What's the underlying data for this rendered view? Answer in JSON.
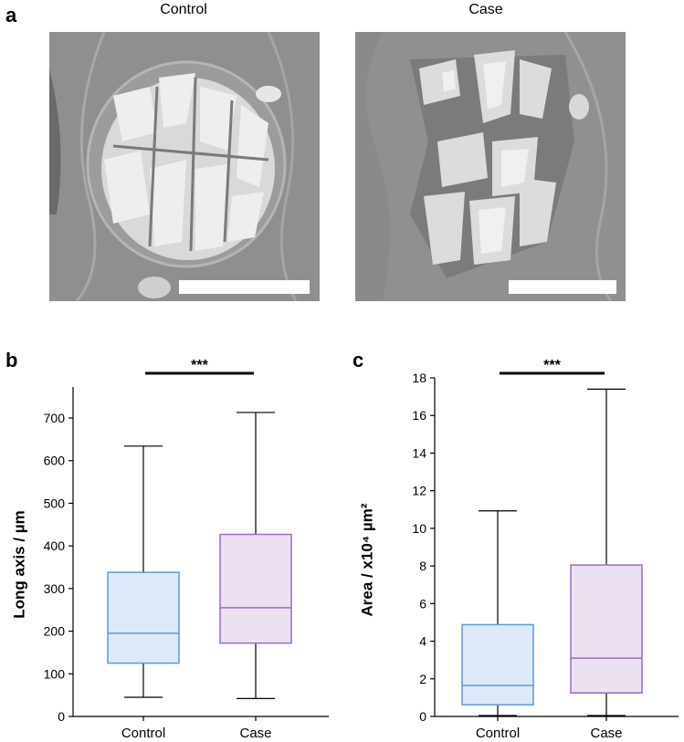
{
  "panels": {
    "a": "a",
    "b": "b",
    "c": "c"
  },
  "images": {
    "left_title": "Control",
    "right_title": "Case"
  },
  "chart_data": [
    {
      "panel": "b",
      "type": "boxplot",
      "title": "",
      "xlabel": "",
      "ylabel": "Long axis / µm",
      "ylim": [
        0,
        780
      ],
      "yticks": [
        0,
        100,
        200,
        300,
        400,
        500,
        600,
        700
      ],
      "categories": [
        "Control",
        "Case"
      ],
      "boxes": [
        {
          "category": "Control",
          "min": 45,
          "q1": 125,
          "median": 195,
          "q3": 338,
          "max": 634,
          "color": "#5b9bd5",
          "fill": "#dde9f7"
        },
        {
          "category": "Case",
          "min": 42,
          "q1": 172,
          "median": 255,
          "q3": 427,
          "max": 713,
          "color": "#9d6bbf",
          "fill": "#ece1f1"
        }
      ],
      "significance": {
        "label": "***",
        "from": "Control",
        "to": "Case"
      },
      "grid": false
    },
    {
      "panel": "c",
      "type": "boxplot",
      "title": "",
      "xlabel": "",
      "ylabel": "Area / x10⁴ µm²",
      "ylim": [
        0,
        18
      ],
      "yticks": [
        0,
        2,
        4,
        6,
        8,
        10,
        12,
        14,
        16,
        18
      ],
      "categories": [
        "Control",
        "Case"
      ],
      "boxes": [
        {
          "category": "Control",
          "min": 0.05,
          "q1": 0.62,
          "median": 1.65,
          "q3": 4.88,
          "max": 10.93,
          "color": "#5b9bd5",
          "fill": "#dde9f7"
        },
        {
          "category": "Case",
          "min": 0.05,
          "q1": 1.25,
          "median": 3.1,
          "q3": 8.05,
          "max": 17.4,
          "color": "#9d6bbf",
          "fill": "#ece1f1"
        }
      ],
      "significance": {
        "label": "***",
        "from": "Control",
        "to": "Case"
      },
      "grid": false
    }
  ]
}
